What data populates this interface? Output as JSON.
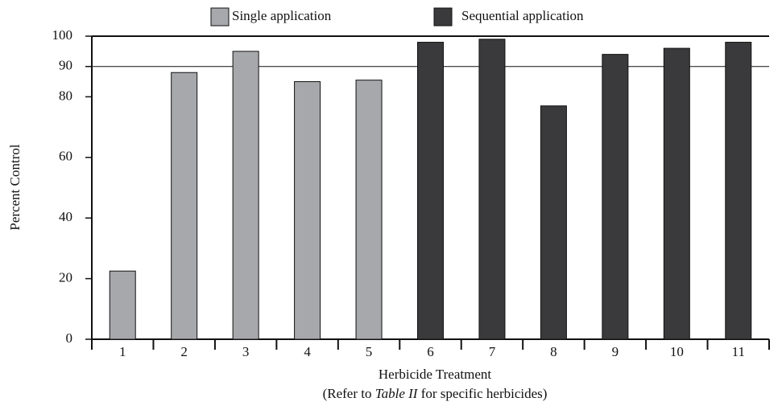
{
  "chart_data": {
    "type": "bar",
    "xlabel": "Herbicide Treatment",
    "xlabel_note": [
      "(Refer to ",
      "Table II",
      " for specific herbicides)"
    ],
    "ylabel": "Percent Control",
    "categories": [
      "1",
      "2",
      "3",
      "4",
      "5",
      "6",
      "7",
      "8",
      "9",
      "10",
      "11"
    ],
    "series": [
      {
        "name": "Single application",
        "color": "#a7a8ab",
        "values": [
          22.5,
          88,
          95,
          85,
          85.5,
          null,
          null,
          null,
          null,
          null,
          null
        ]
      },
      {
        "name": "Sequential application",
        "color": "#3a3a3c",
        "values": [
          null,
          null,
          null,
          null,
          null,
          98,
          99,
          77,
          94,
          96,
          98
        ]
      }
    ],
    "ylim": [
      0,
      100
    ],
    "yticks": [
      0,
      20,
      40,
      60,
      80,
      90,
      100
    ],
    "reference_line": 90,
    "legend": "top"
  }
}
